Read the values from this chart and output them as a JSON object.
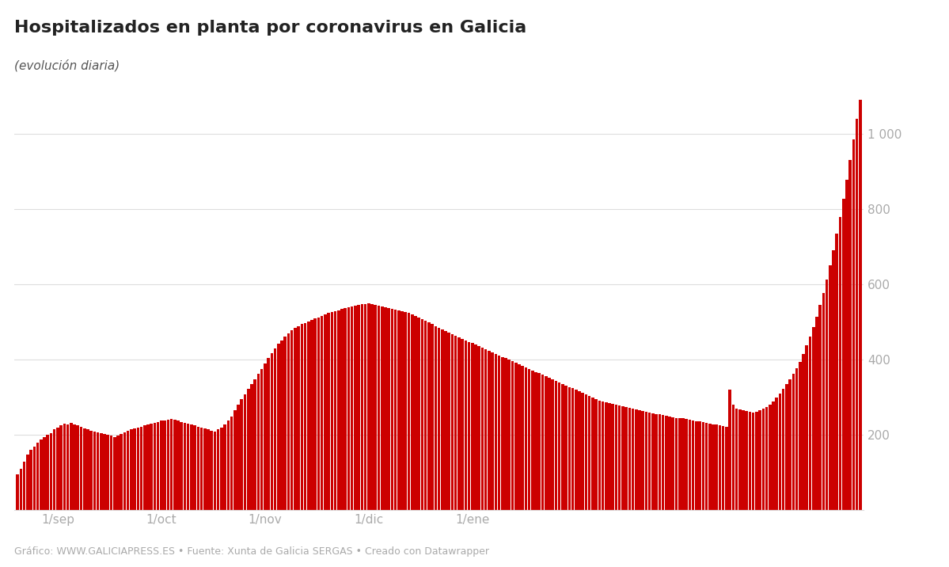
{
  "title": "Hospitalizados en planta por coronavirus en Galicia",
  "subtitle": "(evolución diaria)",
  "footer": "Gráfico: WWW.GALICIAPRESS.ES • Fuente: Xunta de Galicia SERGAS • Creado con Datawrapper",
  "bar_color": "#cc0000",
  "background_color": "#ffffff",
  "grid_color": "#dddddd",
  "axis_label_color": "#aaaaaa",
  "title_color": "#222222",
  "subtitle_color": "#555555",
  "footer_color": "#aaaaaa",
  "ylim": [
    0,
    1100
  ],
  "yticks": [
    200,
    400,
    600,
    800,
    1000
  ],
  "values": [
    95,
    110,
    130,
    148,
    160,
    170,
    180,
    188,
    195,
    200,
    205,
    215,
    220,
    225,
    230,
    228,
    232,
    228,
    225,
    222,
    218,
    215,
    212,
    210,
    208,
    205,
    202,
    200,
    198,
    195,
    198,
    202,
    208,
    212,
    215,
    218,
    220,
    222,
    225,
    228,
    230,
    232,
    235,
    238,
    238,
    240,
    242,
    240,
    238,
    235,
    232,
    230,
    228,
    225,
    222,
    220,
    218,
    215,
    212,
    210,
    215,
    220,
    228,
    238,
    250,
    265,
    280,
    295,
    308,
    322,
    335,
    348,
    362,
    375,
    390,
    405,
    418,
    430,
    442,
    452,
    462,
    470,
    478,
    485,
    490,
    495,
    498,
    502,
    505,
    510,
    512,
    516,
    520,
    524,
    528,
    530,
    532,
    535,
    538,
    540,
    542,
    544,
    546,
    548,
    548,
    550,
    548,
    546,
    544,
    542,
    540,
    538,
    536,
    534,
    532,
    530,
    527,
    524,
    520,
    516,
    512,
    508,
    504,
    500,
    495,
    490,
    485,
    480,
    476,
    472,
    468,
    464,
    460,
    456,
    452,
    448,
    444,
    440,
    436,
    432,
    428,
    424,
    420,
    416,
    412,
    408,
    404,
    400,
    396,
    392,
    388,
    384,
    380,
    376,
    372,
    368,
    364,
    360,
    356,
    352,
    348,
    344,
    340,
    336,
    332,
    328,
    324,
    320,
    316,
    312,
    308,
    304,
    300,
    296,
    292,
    290,
    288,
    285,
    282,
    280,
    278,
    276,
    274,
    272,
    270,
    268,
    266,
    264,
    262,
    260,
    258,
    256,
    255,
    254,
    252,
    250,
    248,
    246,
    245,
    244,
    242,
    240,
    238,
    237,
    236,
    234,
    232,
    230,
    229,
    228,
    226,
    224,
    222,
    320,
    280,
    270,
    268,
    266,
    264,
    262,
    260,
    262,
    265,
    270,
    275,
    280,
    290,
    300,
    310,
    322,
    335,
    348,
    362,
    378,
    395,
    415,
    438,
    462,
    488,
    515,
    545,
    578,
    614,
    652,
    692,
    735,
    780,
    828,
    878,
    930,
    985,
    1040,
    1090
  ],
  "x_tick_labels": [
    "1/sep",
    "1/oct",
    "1/nov",
    "1/dic",
    "1/ene"
  ],
  "x_tick_positions": [
    12,
    43,
    74,
    105,
    136
  ]
}
